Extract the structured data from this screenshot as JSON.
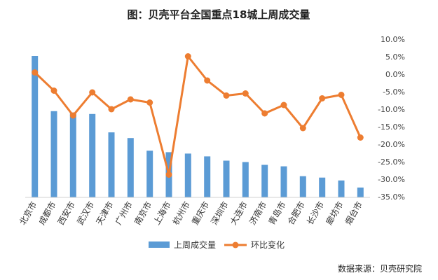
{
  "chart_data": {
    "type": "bar",
    "title": "图：贝壳平台全国重点18城上周成交量",
    "categories": [
      "北京市",
      "成都市",
      "西安市",
      "武汉市",
      "天津市",
      "广州市",
      "南京市",
      "上海市",
      "杭州市",
      "重庆市",
      "深圳市",
      "大连市",
      "济南市",
      "青岛市",
      "合肥市",
      "长沙市",
      "廊坊市",
      "烟台市"
    ],
    "series": [
      {
        "name": "上周成交量",
        "type": "bar",
        "axis": "left",
        "values": [
          100,
          61,
          60,
          59,
          46,
          42,
          33,
          32,
          31,
          29,
          26,
          25,
          23,
          22,
          15,
          14,
          12,
          7
        ]
      },
      {
        "name": "环比变化",
        "type": "line",
        "axis": "right",
        "unit": "%",
        "values": [
          0.5,
          -4.7,
          -11.8,
          -5.2,
          -10.0,
          -7.2,
          -8.1,
          -28.7,
          5.1,
          -1.8,
          -6.1,
          -5.5,
          -11.2,
          -8.8,
          -15.4,
          -6.9,
          -5.9,
          -18.1
        ]
      }
    ],
    "y2lim": [
      -35,
      10
    ],
    "y2ticks": [
      "10.0%",
      "5.0%",
      "0.0%",
      "-5.0%",
      "-10.0%",
      "-15.0%",
      "-20.0%",
      "-25.0%",
      "-30.0%",
      "-35.0%"
    ],
    "colors": {
      "bar": "#5b9bd5",
      "line": "#ed7d31"
    },
    "legend": {
      "placement": "bottom",
      "items": [
        "上周成交量",
        "环比变化"
      ]
    },
    "grid": false
  },
  "source_note": "数据来源：贝壳研究院"
}
